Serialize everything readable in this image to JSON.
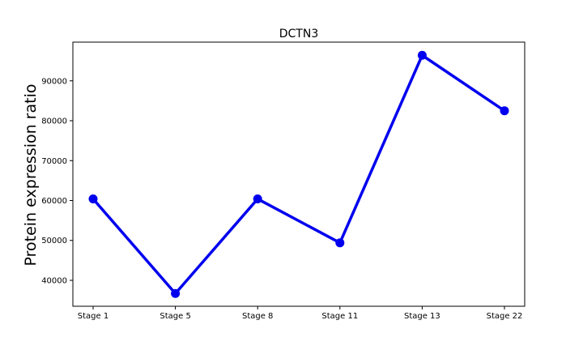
{
  "chart_data": {
    "type": "line",
    "title": "DCTN3",
    "xlabel": "",
    "ylabel": "Protein expression ratio",
    "categories": [
      "Stage 1",
      "Stage 5",
      "Stage 8",
      "Stage 11",
      "Stage 13",
      "Stage 22"
    ],
    "series": [
      {
        "name": "DCTN3",
        "values": [
          60400,
          36700,
          60400,
          49400,
          96400,
          82500
        ]
      }
    ],
    "ylim": [
      33500,
      99700
    ],
    "yticks": [
      40000,
      50000,
      60000,
      70000,
      80000,
      90000
    ],
    "ytick_labels": [
      "40000",
      "50000",
      "60000",
      "70000",
      "80000",
      "90000"
    ],
    "grid": false,
    "colors": {
      "line": "#0000ee",
      "marker": "#0000ee",
      "axes": "#000000"
    }
  }
}
